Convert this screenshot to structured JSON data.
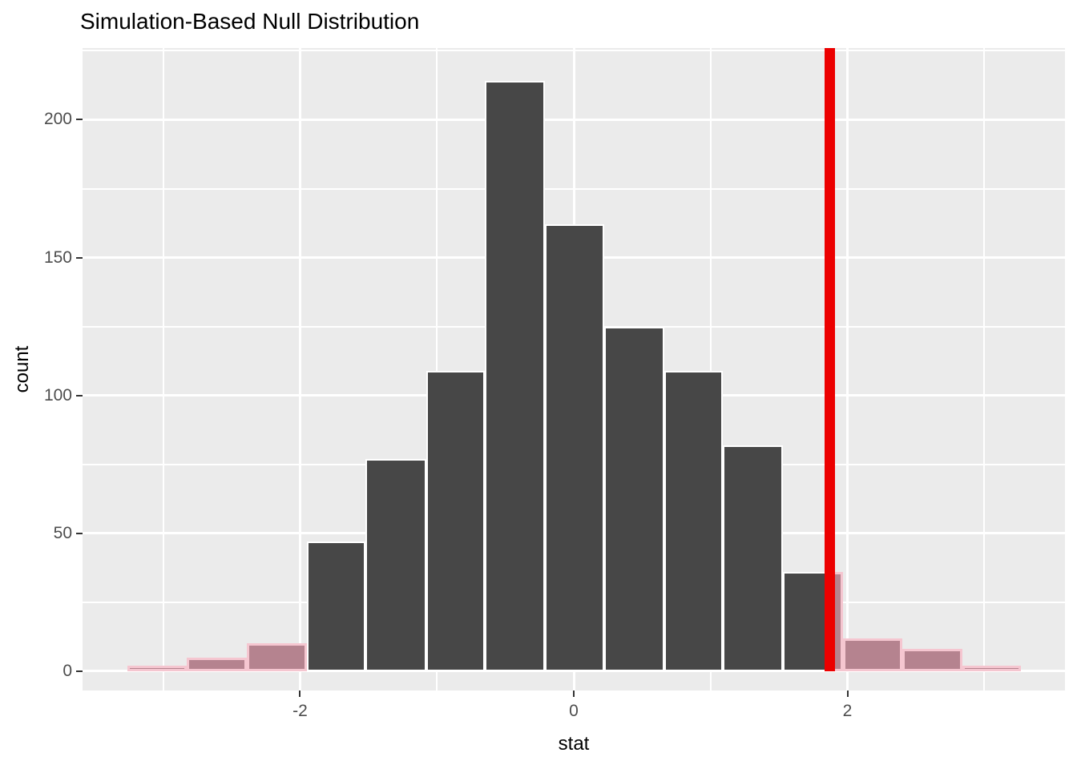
{
  "page": {
    "background_color": "#FFFFFF"
  },
  "chart_data": {
    "type": "bar",
    "subtype": "histogram",
    "title": "Simulation-Based Null Distribution",
    "xlabel": "stat",
    "ylabel": "count",
    "x_major_ticks": [
      -2,
      0,
      2
    ],
    "x_tick_labels": [
      "-2",
      "0",
      "2"
    ],
    "x_minor_gridlines": [
      -3,
      -1,
      1,
      3
    ],
    "y_major_ticks": [
      0,
      50,
      100,
      150,
      200
    ],
    "y_tick_labels": [
      "0",
      "50",
      "100",
      "150",
      "200"
    ],
    "y_minor_gridlines": [
      25,
      75,
      125,
      175,
      225
    ],
    "xlim": [
      -3.59,
      3.59
    ],
    "ylim": [
      -7,
      226
    ],
    "grid": true,
    "legend": false,
    "bin_width": 0.44,
    "bins": [
      {
        "start": -3.26,
        "end": -2.83,
        "count": 2,
        "shaded": true
      },
      {
        "start": -2.83,
        "end": -2.39,
        "count": 5,
        "shaded": true
      },
      {
        "start": -2.39,
        "end": -1.95,
        "count": 10,
        "shaded": true
      },
      {
        "start": -1.95,
        "end": -1.52,
        "count": 47,
        "shaded": false
      },
      {
        "start": -1.52,
        "end": -1.08,
        "count": 77,
        "shaded": false
      },
      {
        "start": -1.08,
        "end": -0.65,
        "count": 109,
        "shaded": false
      },
      {
        "start": -0.65,
        "end": -0.21,
        "count": 214,
        "shaded": false
      },
      {
        "start": -0.21,
        "end": 0.22,
        "count": 162,
        "shaded": false
      },
      {
        "start": 0.22,
        "end": 0.66,
        "count": 125,
        "shaded": false
      },
      {
        "start": 0.66,
        "end": 1.09,
        "count": 109,
        "shaded": false
      },
      {
        "start": 1.09,
        "end": 1.53,
        "count": 82,
        "shaded": false
      },
      {
        "start": 1.53,
        "end": 1.97,
        "count": 36,
        "shaded": false,
        "split_by_obs_line": true
      },
      {
        "start": 1.97,
        "end": 2.4,
        "count": 12,
        "shaded": true
      },
      {
        "start": 2.4,
        "end": 2.84,
        "count": 8,
        "shaded": true
      },
      {
        "start": 2.84,
        "end": 3.27,
        "count": 2,
        "shaded": true
      }
    ],
    "observed_stat": 1.87,
    "colors": {
      "bar_fill": "#474747",
      "bar_border": "#FFFFFF",
      "shade_fill": "#B5838F",
      "shade_border": "#F5C6D0",
      "obs_line": "#EC0000",
      "panel_bg": "#EBEBEB",
      "grid": "#FFFFFF",
      "tick_text": "#4D4D4D",
      "title_text": "#000000"
    }
  }
}
